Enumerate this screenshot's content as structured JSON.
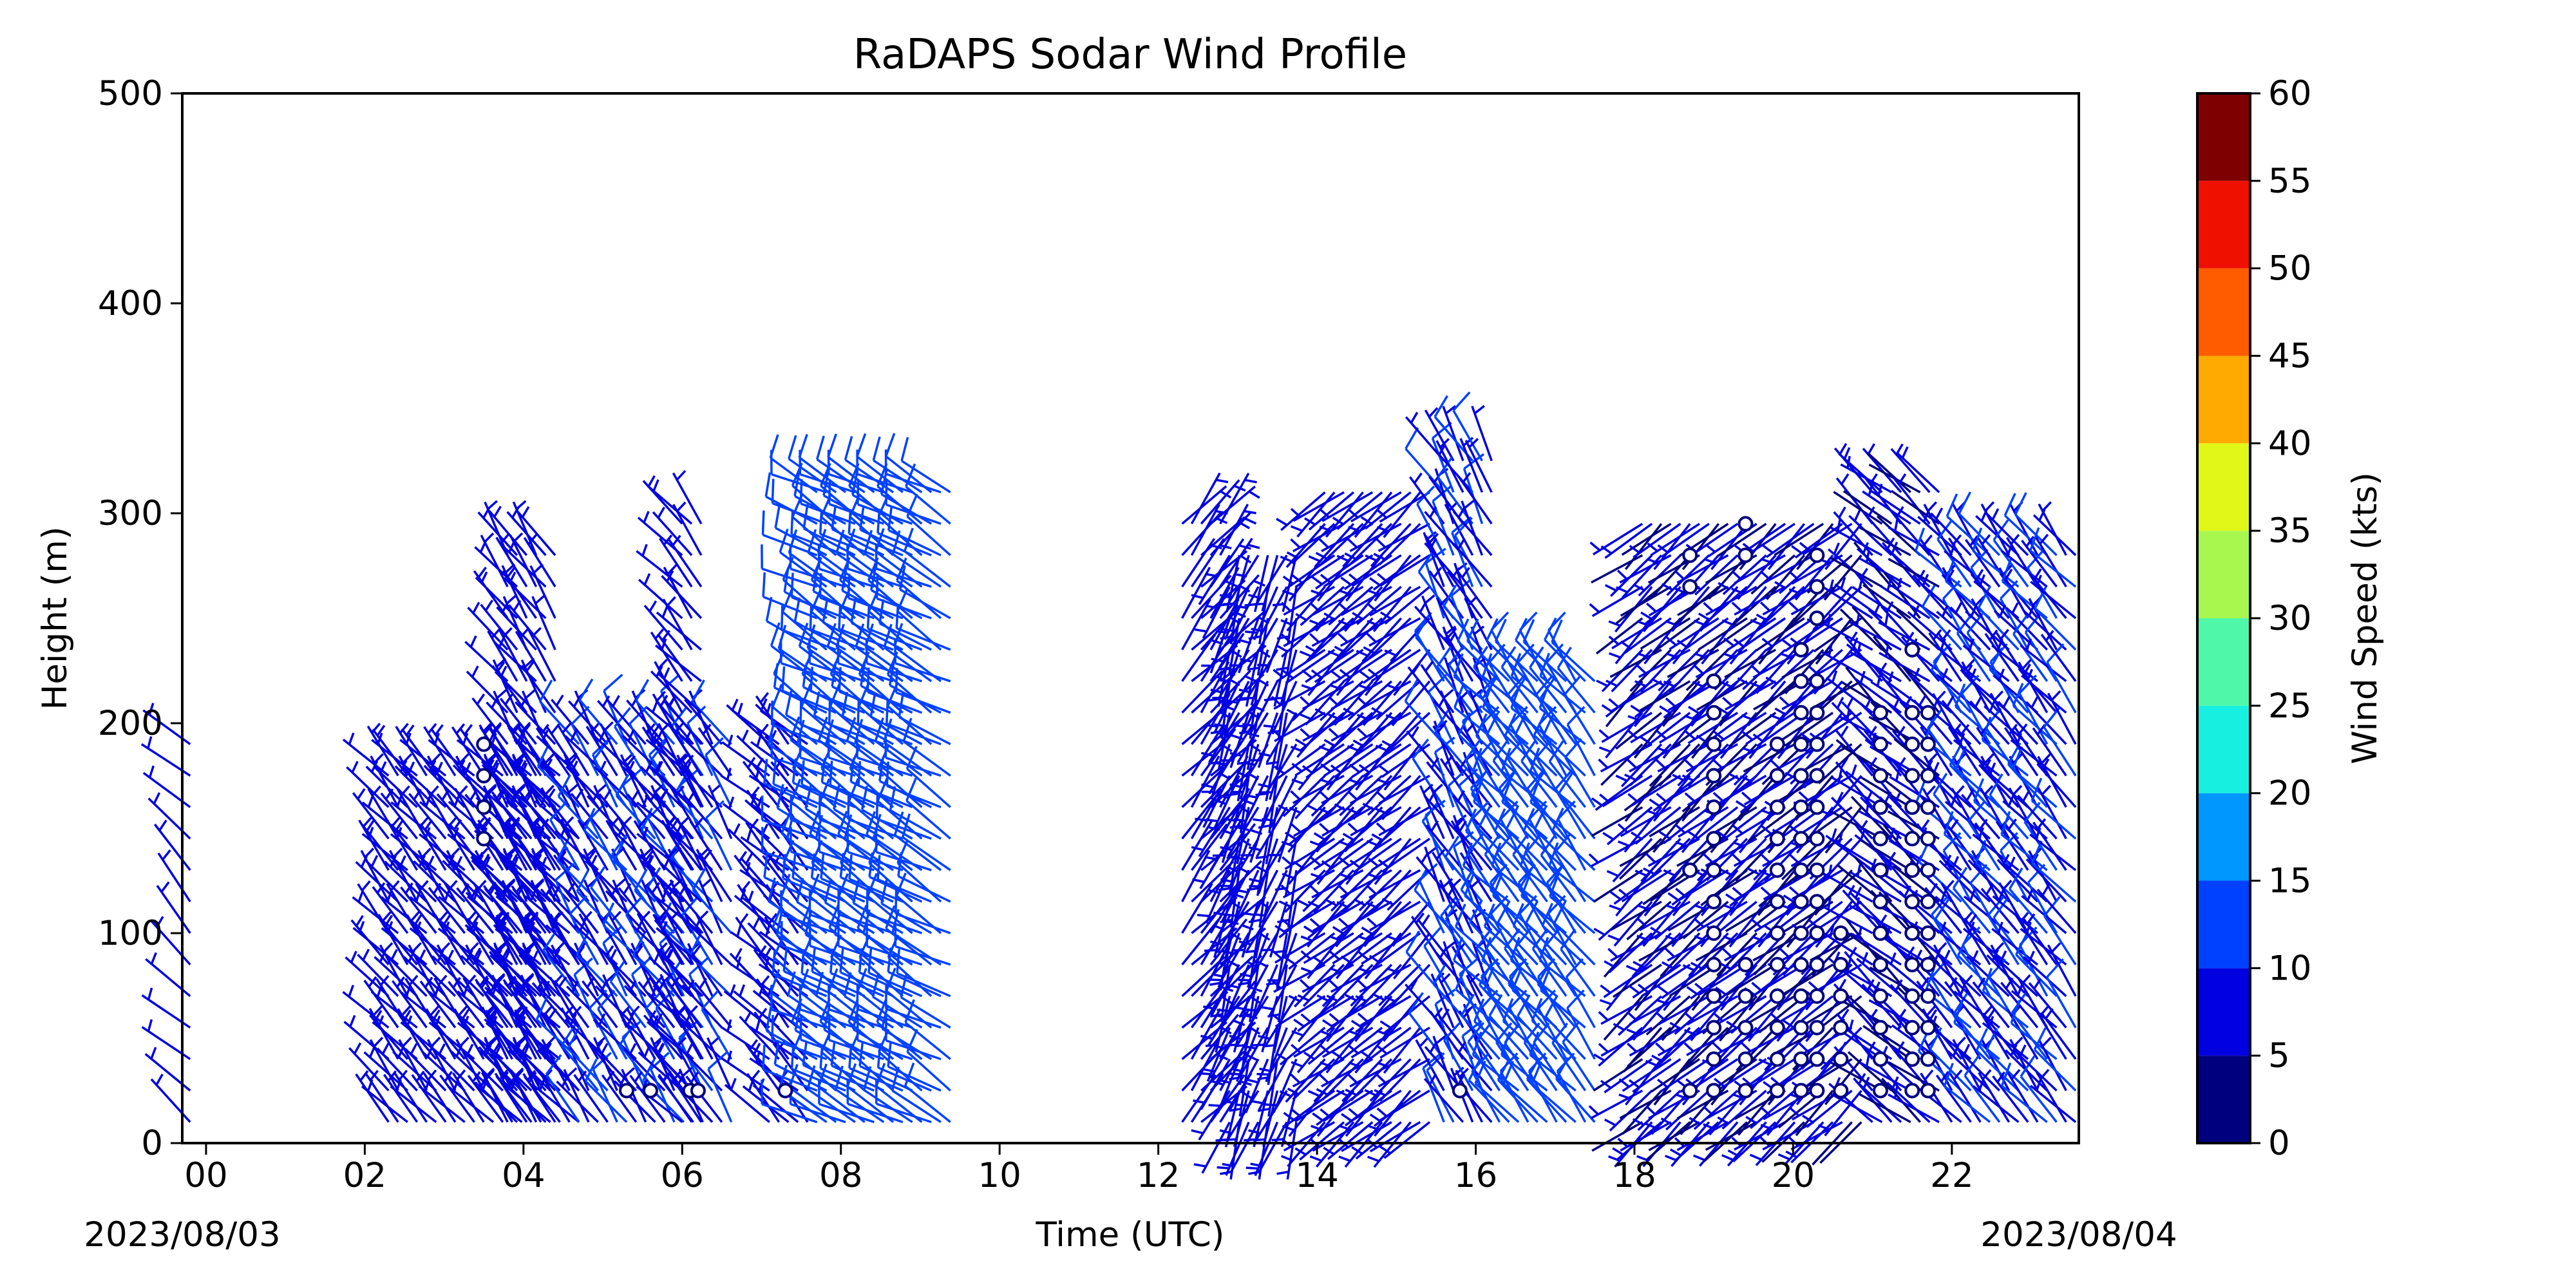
{
  "chart_data": {
    "type": "wind_barb_profile",
    "title": "RaDAPS Sodar Wind Profile",
    "xlabel": "Time (UTC)",
    "ylabel": "Height (m)",
    "x_unit": "hours UTC",
    "xlim": [
      -0.3,
      23.6
    ],
    "ylim": [
      0,
      500
    ],
    "x_ticks": [
      "00",
      "02",
      "04",
      "06",
      "08",
      "10",
      "12",
      "14",
      "16",
      "18",
      "20",
      "22"
    ],
    "y_ticks": [
      "0",
      "100",
      "200",
      "300",
      "400",
      "500"
    ],
    "start_date_label": "2023/08/03",
    "end_date_label": "2023/08/04",
    "colorbar": {
      "label": "Wind Speed (kts)",
      "min": 0,
      "max": 60,
      "ticks": [
        "0",
        "5",
        "10",
        "15",
        "20",
        "25",
        "30",
        "35",
        "40",
        "45",
        "50",
        "55",
        "60"
      ],
      "colors": [
        "#00007f",
        "#0000e0",
        "#0041ff",
        "#0098ff",
        "#17f0e0",
        "#4ff7a8",
        "#a8f74f",
        "#e0f717",
        "#ffaa00",
        "#ff5c00",
        "#f01000",
        "#7f0000"
      ]
    },
    "segments": [
      {
        "t0": -0.2,
        "t1": -0.1,
        "h_max": 200,
        "speed": 7,
        "dir": 315
      },
      {
        "t0": 2.3,
        "t1": 4.7,
        "h_max": 175,
        "speed": 8,
        "dir": 320
      },
      {
        "t0": 3.8,
        "t1": 4.4,
        "h_max": 280,
        "speed": 8,
        "dir": 325
      },
      {
        "t0": 4.7,
        "t1": 6.7,
        "h_max": 200,
        "speed": 9,
        "dir": 325
      },
      {
        "t0": 6.0,
        "t1": 6.3,
        "h_max": 300,
        "speed": 7,
        "dir": 320
      },
      {
        "t0": 7.1,
        "t1": 7.6,
        "h_max": 190,
        "speed": 8,
        "dir": 315
      },
      {
        "t0": 7.7,
        "t1": 9.4,
        "h_max": 310,
        "speed": 12,
        "dir": 300
      },
      {
        "t0": 12.3,
        "t1": 12.8,
        "h_max": 305,
        "speed": 8,
        "dir": 40
      },
      {
        "t0": 12.9,
        "t1": 13.8,
        "h_max": 290,
        "speed": 8,
        "dir": 200
      },
      {
        "t0": 14.1,
        "t1": 15.5,
        "h_max": 320,
        "speed": 8,
        "dir": 230
      },
      {
        "t0": 15.6,
        "t1": 16.2,
        "h_max": 325,
        "speed": 9,
        "dir": 330
      },
      {
        "t0": 16.3,
        "t1": 17.5,
        "h_max": 225,
        "speed": 12,
        "dir": 320
      },
      {
        "t0": 18.1,
        "t1": 20.9,
        "h_max": 295,
        "speed": 6,
        "dir": 230
      },
      {
        "t0": 21.0,
        "t1": 21.9,
        "h_max": 315,
        "speed": 6,
        "dir": 310
      },
      {
        "t0": 22.0,
        "t1": 23.6,
        "h_max": 280,
        "speed": 9,
        "dir": 320
      }
    ],
    "calm_markers": [
      {
        "t": 3.5,
        "heights": [
          145,
          160,
          175,
          190
        ]
      },
      {
        "t": 5.3,
        "heights": [
          25
        ]
      },
      {
        "t": 5.6,
        "heights": [
          25
        ]
      },
      {
        "t": 6.1,
        "heights": [
          25
        ]
      },
      {
        "t": 6.2,
        "heights": [
          25
        ]
      },
      {
        "t": 7.3,
        "heights": [
          25
        ]
      },
      {
        "t": 15.8,
        "heights": [
          25
        ]
      },
      {
        "t": 18.7,
        "heights": [
          25,
          130,
          265,
          280
        ]
      },
      {
        "t": 19.0,
        "heights": [
          25,
          40,
          55,
          70,
          85,
          100,
          115,
          130,
          145,
          160,
          175,
          190,
          205,
          220
        ]
      },
      {
        "t": 19.4,
        "heights": [
          25,
          40,
          55,
          70,
          85,
          280,
          295
        ]
      },
      {
        "t": 19.8,
        "heights": [
          25,
          40,
          55,
          70,
          85,
          100,
          115,
          130,
          145,
          160,
          175,
          190
        ]
      },
      {
        "t": 20.1,
        "heights": [
          25,
          40,
          55,
          70,
          85,
          100,
          115,
          130,
          145,
          160,
          175,
          190,
          205,
          220,
          235
        ]
      },
      {
        "t": 20.3,
        "heights": [
          25,
          40,
          55,
          70,
          85,
          100,
          115,
          130,
          145,
          160,
          175,
          190,
          205,
          220,
          250,
          265,
          280
        ]
      },
      {
        "t": 20.6,
        "heights": [
          25,
          40,
          55,
          70,
          85,
          100
        ]
      },
      {
        "t": 21.1,
        "heights": [
          25,
          40,
          55,
          70,
          85,
          100,
          115,
          130,
          145,
          160,
          175,
          190,
          205
        ]
      },
      {
        "t": 21.5,
        "heights": [
          25,
          40,
          55,
          70,
          85,
          100,
          115,
          130,
          145,
          160,
          175,
          190,
          205,
          235
        ]
      },
      {
        "t": 21.7,
        "heights": [
          25,
          40,
          55,
          70,
          85,
          100,
          115,
          130,
          145,
          160,
          175,
          190,
          205
        ]
      }
    ]
  }
}
